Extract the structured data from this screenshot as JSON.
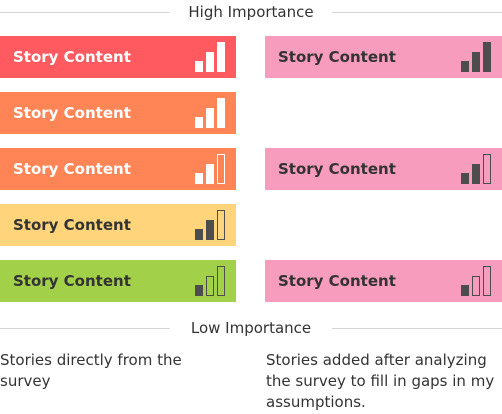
{
  "header": {
    "title": "High Importance"
  },
  "footer": {
    "title": "Low Importance"
  },
  "colors": {
    "red": "#ff5a5f",
    "orange": "#ff8456",
    "yellow": "#ffd47a",
    "green": "#a2d149",
    "pink": "#f79cbd",
    "white_bar": "#ffffff",
    "dark_bar": "#4d4d4d",
    "dark_text": "#333333"
  },
  "columns": {
    "left": {
      "cards": [
        {
          "text": "Story Content",
          "level": 3,
          "bg": "#ff5a5f",
          "text_color": "#ffffff",
          "bar_color": "#ffffff"
        },
        {
          "text": "Story Content",
          "level": 3,
          "bg": "#ff8456",
          "text_color": "#ffffff",
          "bar_color": "#ffffff"
        },
        {
          "text": "Story Content",
          "level": 2,
          "bg": "#ff8456",
          "text_color": "#ffffff",
          "bar_color": "#ffffff"
        },
        {
          "text": "Story Content",
          "level": 2,
          "bg": "#ffd47a",
          "text_color": "#333333",
          "bar_color": "#4d4d4d"
        },
        {
          "text": "Story Content",
          "level": 1,
          "bg": "#a2d149",
          "text_color": "#333333",
          "bar_color": "#4d4d4d"
        }
      ],
      "description": "Stories directly from the survey"
    },
    "right": {
      "cards": [
        {
          "text": "Story Content",
          "level": 3,
          "bg": "#f79cbd",
          "text_color": "#333333",
          "bar_color": "#4d4d4d",
          "row": 0
        },
        {
          "text": "Story Content",
          "level": 2,
          "bg": "#f79cbd",
          "text_color": "#333333",
          "bar_color": "#4d4d4d",
          "row": 2
        },
        {
          "text": "Story Content",
          "level": 1,
          "bg": "#f79cbd",
          "text_color": "#333333",
          "bar_color": "#4d4d4d",
          "row": 4
        }
      ],
      "description": "Stories added after analyzing the survey to fill in gaps in my assumptions."
    }
  }
}
